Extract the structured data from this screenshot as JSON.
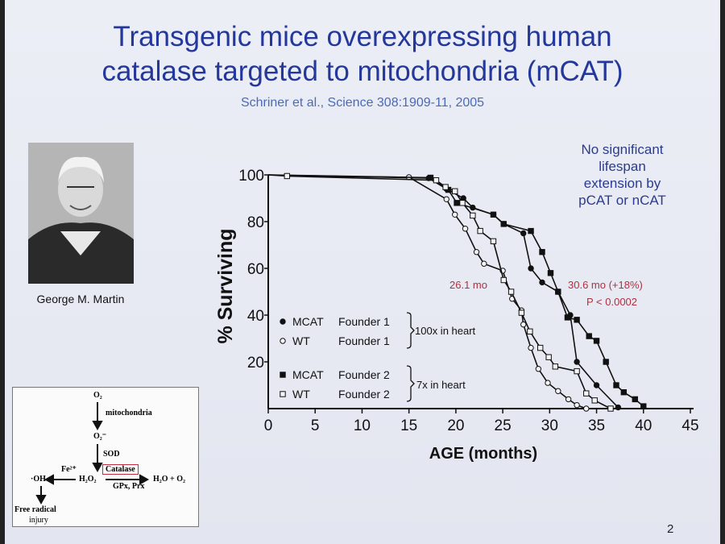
{
  "slide": {
    "title_line1": "Transgenic mice overexpressing human",
    "title_line2": "catalase targeted to mitochondria (mCAT)",
    "citation": "Schriner et al., Science 308:1909-11, 2005",
    "photo_caption": "George M. Martin",
    "note_lines": [
      "No significant",
      "lifespan",
      "extension by",
      "pCAT or nCAT"
    ],
    "page_number": "2",
    "colors": {
      "title": "#23389a",
      "annotation": "#b03040",
      "note": "#2b3b8f"
    }
  },
  "diagram": {
    "o2": "O₂",
    "mitochondria": "mitochondria",
    "superoxide": "O₂⁻",
    "sod": "SOD",
    "fe": "Fe²⁺",
    "oh": "·OH",
    "h2o2": "H₂O₂",
    "catalase": "Catalase",
    "gpx": "GPx, Prx",
    "products": "H₂O + O₂",
    "injury1": "Free radical",
    "injury2": "injury"
  },
  "chart_data": {
    "type": "line",
    "xlabel": "AGE (months)",
    "ylabel": "% Surviving",
    "xlim": [
      0,
      45
    ],
    "ylim": [
      0,
      100
    ],
    "xticks": [
      "0",
      "5",
      "10",
      "15",
      "20",
      "25",
      "30",
      "35",
      "40",
      "45"
    ],
    "yticks": [
      "20",
      "40",
      "60",
      "80",
      "100"
    ],
    "grid": false,
    "legend_position": "bottom-left",
    "series": [
      {
        "name": "MCAT Founder 1",
        "label_a": "MCAT",
        "label_b": "Founder 1",
        "marker": "filled-circle",
        "x": [
          0,
          17.1,
          19,
          20.8,
          21.8,
          24,
          25.1,
          27.2,
          28,
          29.2,
          30.9,
          32.2,
          32.9,
          35,
          37.3
        ],
        "y": [
          100,
          98.6,
          94,
          90,
          86,
          83,
          79,
          75,
          60,
          54,
          50,
          40,
          20,
          10,
          0.5
        ]
      },
      {
        "name": "WT Founder 1",
        "label_a": "WT",
        "label_b": "Founder 1",
        "marker": "open-circle",
        "x": [
          0,
          2,
          15,
          19,
          19.9,
          21,
          22.2,
          23,
          25,
          26,
          27,
          27.2,
          28,
          28.8,
          29.8,
          30.9,
          32,
          32.9,
          33.9
        ],
        "y": [
          100,
          99.5,
          99,
          89.6,
          83,
          77,
          67,
          62,
          59,
          47,
          42,
          36,
          26,
          17,
          11,
          7.5,
          4,
          1.5,
          0
        ]
      },
      {
        "name": "MCAT Founder 2",
        "label_a": "MCAT",
        "label_b": "Founder 2",
        "marker": "filled-square",
        "x": [
          0,
          17.3,
          19.2,
          20.1,
          24,
          25.1,
          28,
          29.2,
          30.1,
          30.9,
          31.9,
          32.9,
          34.2,
          35,
          36,
          37.1,
          37.9,
          39.1,
          40
        ],
        "y": [
          100,
          98.8,
          93.6,
          88,
          83,
          79,
          76,
          67,
          58,
          50,
          39,
          38,
          31,
          29,
          20,
          10,
          7,
          4,
          1
        ]
      },
      {
        "name": "WT Founder 2",
        "label_a": "WT",
        "label_b": "Founder 2",
        "marker": "open-square",
        "x": [
          2,
          17.9,
          18.9,
          19.9,
          20.7,
          21.8,
          22.6,
          24,
          25.1,
          25.9,
          27,
          27.9,
          29,
          29.9,
          30.6,
          32.9,
          33.9,
          34.8,
          36.5
        ],
        "y": [
          99.5,
          97.7,
          94.8,
          93,
          88,
          82.6,
          76,
          71.6,
          55,
          50,
          41,
          33,
          26,
          22,
          18,
          16,
          6.5,
          3.5,
          0
        ]
      }
    ],
    "groups": [
      {
        "label": "100x in heart",
        "series": [
          0,
          1
        ]
      },
      {
        "label": "7x in heart",
        "series": [
          2,
          3
        ]
      }
    ],
    "annotations": {
      "wt_median": "26.1 mo",
      "mcat_median": "30.6 mo (+18%)",
      "p_value": "P < 0.0002"
    }
  }
}
